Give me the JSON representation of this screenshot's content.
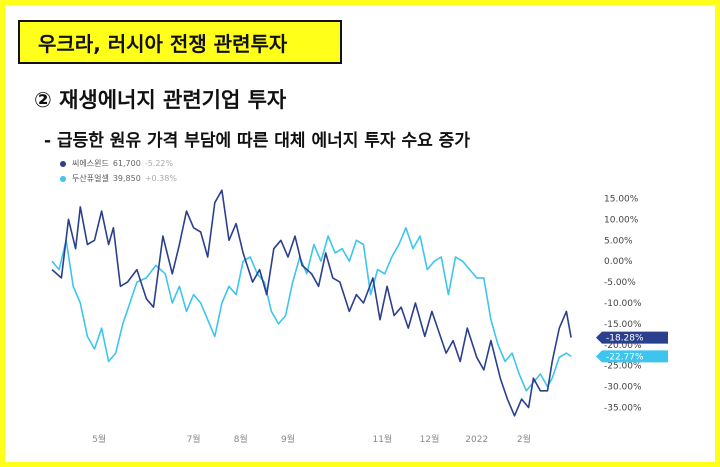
{
  "title": "우크라, 러시아 전쟁 관련투자",
  "heading": "② 재생에너지 관련기업 투자",
  "subheading": "- 급등한 원유 가격 부담에 따른 대체 에너지 투자 수요 증가",
  "colors": {
    "highlight": "#ffff1a",
    "series1": "#2b3f8f",
    "series2": "#3ec5ee"
  },
  "chart_data": {
    "type": "line",
    "y_ticks": [
      "15.00%",
      "10.00%",
      "5.00%",
      "0.00%",
      "-5.00%",
      "-10.00%",
      "-15.00%",
      "-20.00%",
      "-25.00%",
      "-30.00%",
      "-35.00%"
    ],
    "ylim": [
      -38,
      18
    ],
    "x_ticks": [
      "5월",
      "7월",
      "8월",
      "9월",
      "11월",
      "12월",
      "2022",
      "2월"
    ],
    "x_tick_pos": [
      1,
      3,
      4,
      5,
      7,
      8,
      9,
      10
    ],
    "xlim": [
      0,
      11.4
    ],
    "grid": false,
    "legend_position": "top-left",
    "series": [
      {
        "name": "씨에스윈드",
        "price": "61,700",
        "change": "-5.22%",
        "last_label": "-18.28%",
        "x": [
          0,
          0.2,
          0.35,
          0.5,
          0.6,
          0.75,
          0.9,
          1.05,
          1.2,
          1.3,
          1.45,
          1.6,
          1.8,
          2.0,
          2.15,
          2.35,
          2.55,
          2.7,
          2.85,
          3.0,
          3.15,
          3.3,
          3.45,
          3.6,
          3.75,
          3.9,
          4.05,
          4.25,
          4.4,
          4.55,
          4.7,
          4.85,
          5.0,
          5.15,
          5.3,
          5.5,
          5.65,
          5.8,
          5.95,
          6.1,
          6.3,
          6.45,
          6.6,
          6.8,
          6.95,
          7.1,
          7.25,
          7.4,
          7.55,
          7.7,
          7.9,
          8.05,
          8.2,
          8.35,
          8.5,
          8.65,
          8.8,
          9.0,
          9.15,
          9.3,
          9.5,
          9.65,
          9.8,
          9.95,
          10.1,
          10.2,
          10.35,
          10.5,
          10.6,
          10.75,
          10.9,
          11.0
        ],
        "values": [
          -2,
          -4,
          10,
          3,
          13,
          4,
          5,
          12,
          4,
          8,
          -6,
          -5,
          -2,
          -9,
          -11,
          6,
          -3,
          4,
          12,
          8,
          7,
          1,
          14,
          17,
          5,
          9,
          2,
          -5,
          -2,
          -8,
          3,
          5,
          1,
          6,
          -1,
          -3,
          -6,
          2,
          -4,
          -5,
          -12,
          -8,
          -10,
          -4,
          -14,
          -6,
          -13,
          -11,
          -16,
          -10,
          -18,
          -12,
          -17,
          -22,
          -19,
          -24,
          -16,
          -23,
          -26,
          -19,
          -28,
          -33,
          -37,
          -33,
          -35,
          -28,
          -31,
          -31,
          -24,
          -16,
          -12,
          -18.28
        ]
      },
      {
        "name": "두산퓨얼셀",
        "price": "39,850",
        "change": "+0.38%",
        "last_label": "-22.77%",
        "x": [
          0,
          0.15,
          0.3,
          0.45,
          0.6,
          0.75,
          0.9,
          1.05,
          1.2,
          1.35,
          1.5,
          1.65,
          1.8,
          2.0,
          2.2,
          2.4,
          2.55,
          2.7,
          2.85,
          3.0,
          3.15,
          3.3,
          3.45,
          3.6,
          3.75,
          3.9,
          4.05,
          4.2,
          4.35,
          4.5,
          4.65,
          4.8,
          4.95,
          5.1,
          5.25,
          5.4,
          5.55,
          5.7,
          5.85,
          6.0,
          6.15,
          6.3,
          6.45,
          6.6,
          6.75,
          6.9,
          7.05,
          7.2,
          7.35,
          7.5,
          7.65,
          7.8,
          7.95,
          8.1,
          8.25,
          8.4,
          8.55,
          8.7,
          8.85,
          9.0,
          9.15,
          9.3,
          9.45,
          9.6,
          9.75,
          9.9,
          10.05,
          10.2,
          10.35,
          10.5,
          10.6,
          10.75,
          10.9,
          11.0
        ],
        "values": [
          0,
          -2,
          5,
          -6,
          -10,
          -18,
          -21,
          -16,
          -24,
          -22,
          -15,
          -10,
          -5,
          -4,
          -1,
          -3,
          -10,
          -6,
          -12,
          -8,
          -10,
          -14,
          -18,
          -10,
          -6,
          -8,
          0,
          1,
          -3,
          -5,
          -12,
          -15,
          -13,
          -5,
          1,
          -3,
          4,
          0,
          6,
          2,
          3,
          0,
          5,
          4,
          -8,
          -2,
          -3,
          1,
          4,
          8,
          3,
          6,
          -2,
          0,
          1,
          -8,
          1,
          0,
          -2,
          -4,
          -4,
          -14,
          -20,
          -24,
          -22,
          -27,
          -31,
          -29,
          -27,
          -30,
          -28,
          -23,
          -22,
          -22.77
        ]
      }
    ]
  }
}
